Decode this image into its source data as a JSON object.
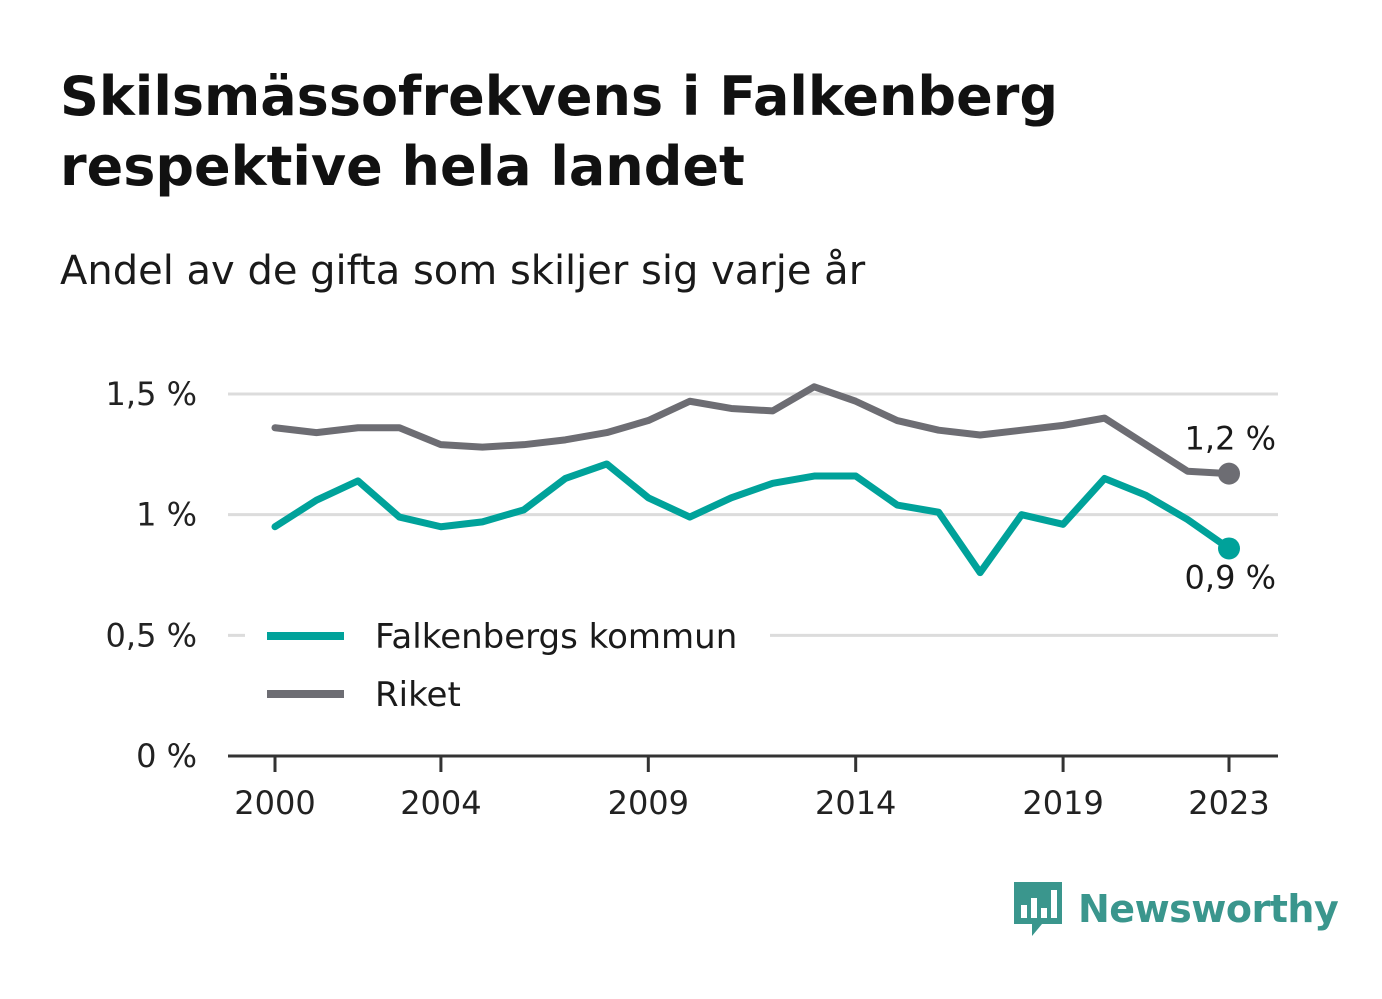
{
  "title": "Skilsmässofrekvens i Falkenberg respektive hela landet",
  "subtitle": "Andel av de gifta som skiljer sig varje år",
  "brand": {
    "name": "Newsworthy",
    "icon": "bar-chart-speech-icon",
    "color": "#3a968d"
  },
  "chart_data": {
    "type": "line",
    "x": [
      2000,
      2001,
      2002,
      2003,
      2004,
      2005,
      2006,
      2007,
      2008,
      2009,
      2010,
      2011,
      2012,
      2013,
      2014,
      2015,
      2016,
      2017,
      2018,
      2019,
      2020,
      2021,
      2022,
      2023
    ],
    "x_tick_labels": [
      "2000",
      "2004",
      "2009",
      "2014",
      "2019",
      "2023"
    ],
    "y_tick_labels": [
      "0 %",
      "0,5 %",
      "1 %",
      "1,5 %"
    ],
    "y_ticks": [
      0,
      0.5,
      1,
      1.5
    ],
    "ylim": [
      0,
      1.6
    ],
    "grid": true,
    "legend_position": "bottom-left",
    "series": [
      {
        "name": "Falkenbergs kommun",
        "color": "#00a29a",
        "values": [
          0.95,
          1.06,
          1.14,
          0.99,
          0.95,
          0.97,
          1.02,
          1.15,
          1.21,
          1.07,
          0.99,
          1.07,
          1.13,
          1.16,
          1.16,
          1.04,
          1.01,
          0.76,
          1.0,
          0.96,
          1.15,
          1.08,
          0.98,
          0.86
        ],
        "end_label": "0,9 %"
      },
      {
        "name": "Riket",
        "color": "#6d6d73",
        "values": [
          1.36,
          1.34,
          1.36,
          1.36,
          1.29,
          1.28,
          1.29,
          1.31,
          1.34,
          1.39,
          1.47,
          1.44,
          1.43,
          1.53,
          1.47,
          1.39,
          1.35,
          1.33,
          1.35,
          1.37,
          1.4,
          1.29,
          1.18,
          1.17
        ],
        "end_label": "1,2 %"
      }
    ]
  }
}
